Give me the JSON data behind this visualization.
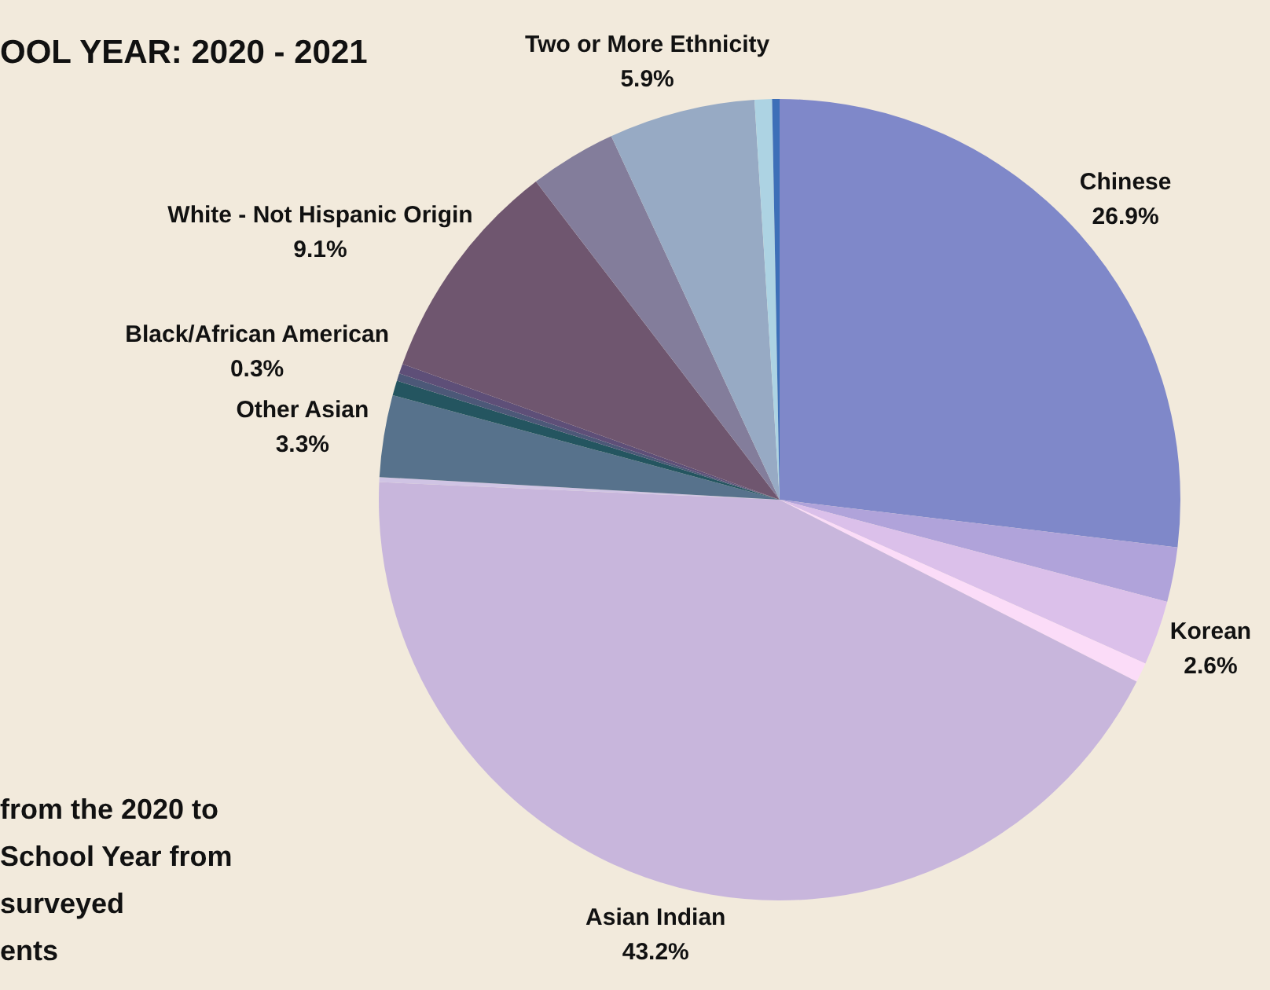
{
  "chart_data": {
    "type": "pie",
    "title": "OOL YEAR: 2020 - 2021",
    "annotations": [
      "from the 2020 to\nSchool Year from\nsurveyed\nents"
    ],
    "categories": [
      "Chinese",
      null,
      "Korean",
      null,
      "Asian Indian",
      null,
      "Other Asian",
      null,
      "Black/African American",
      null,
      "White - Not Hispanic Origin",
      null,
      "Two or More Ethnicity",
      null,
      null
    ],
    "values": [
      26.9,
      2.2,
      2.6,
      0.8,
      43.2,
      0.2,
      3.3,
      0.6,
      0.3,
      0.4,
      9.1,
      3.5,
      5.9,
      0.7,
      0.3
    ],
    "value_labels": [
      "26.9%",
      null,
      "2.6%",
      null,
      "43.2%",
      null,
      "3.3%",
      null,
      "0.3%",
      null,
      "9.1%",
      null,
      "5.9%",
      null,
      null
    ],
    "colors": [
      "#7f88c9",
      "#b0a3da",
      "#dbc0ea",
      "#fbdcf8",
      "#c8b6dc",
      "#d0c4e4",
      "#57728c",
      "#245560",
      "#4c5878",
      "#5e4f78",
      "#6f566f",
      "#837d9b",
      "#97aac4",
      "#add3e3",
      "#3d6fb8"
    ],
    "legend": false
  }
}
